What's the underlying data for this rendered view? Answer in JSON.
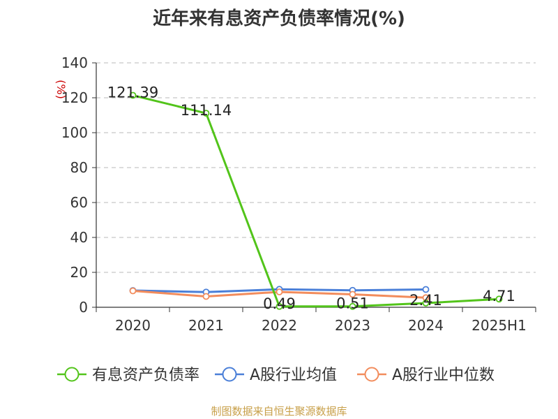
{
  "chart_data": {
    "type": "line",
    "title": "近年来有息资产负债率情况(%)",
    "ylabel": "(%)",
    "xlabel": "",
    "ylim": [
      0,
      140
    ],
    "yticks": [
      0,
      20,
      40,
      60,
      80,
      100,
      120,
      140
    ],
    "categories": [
      "2020",
      "2021",
      "2022",
      "2023",
      "2024",
      "2025H1"
    ],
    "grid": true,
    "legend_position": "bottom",
    "series": [
      {
        "name": "有息资产负债率",
        "color": "#52c41a",
        "values": [
          121.39,
          111.14,
          0.49,
          0.51,
          2.41,
          4.71
        ],
        "labels": [
          "121.39",
          "111.14",
          "0.49",
          "0.51",
          "2.41",
          "4.71"
        ]
      },
      {
        "name": "A股行业均值",
        "color": "#4a7fd8",
        "values": [
          9.6,
          8.7,
          10.3,
          9.7,
          10.2,
          null
        ]
      },
      {
        "name": "A股行业中位数",
        "color": "#f28c5c",
        "values": [
          9.4,
          6.2,
          8.8,
          7.4,
          5.5,
          null
        ]
      }
    ]
  },
  "footer": {
    "source": "制图数据来自恒生聚源数据库"
  }
}
